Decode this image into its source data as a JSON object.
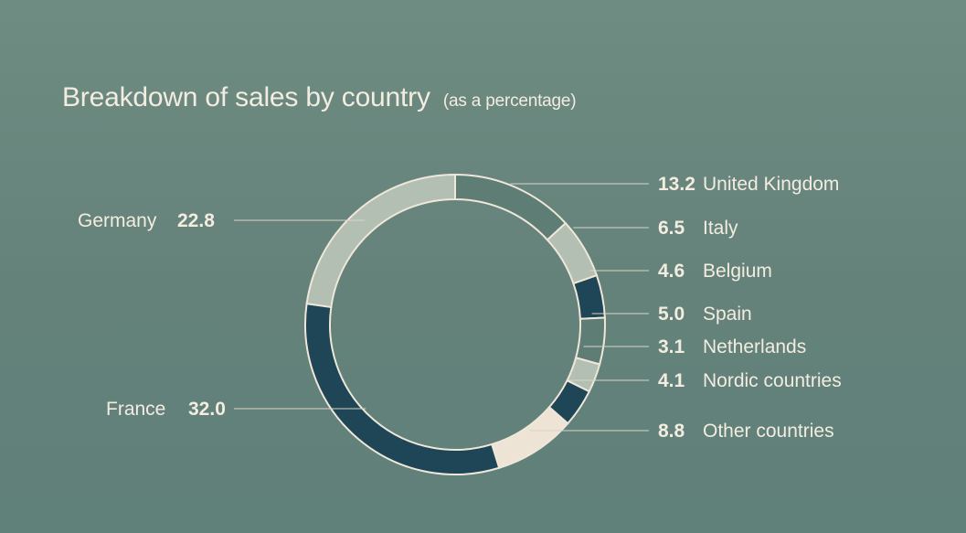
{
  "chart_data": {
    "type": "pie",
    "style": "donut",
    "title": "Breakdown of sales by country",
    "subtitle": "(as a percentage)",
    "categories": [
      "United Kingdom",
      "Italy",
      "Belgium",
      "Spain",
      "Netherlands",
      "Nordic countries",
      "Other countries",
      "France",
      "Germany"
    ],
    "values": [
      13.2,
      6.5,
      4.6,
      5.0,
      3.1,
      4.1,
      8.8,
      32.0,
      22.8
    ],
    "value_labels": [
      "13.2",
      "6.5",
      "4.6",
      "5.0",
      "3.1",
      "4.1",
      "8.8",
      "32.0",
      "22.8"
    ],
    "colors": [
      "#5e7e75",
      "#b3bfb2",
      "#1f4656",
      "#5e7e75",
      "#b3bfb2",
      "#1f4656",
      "#ede4d6",
      "#1f4656",
      "#b3bfb2"
    ],
    "start_angle_deg": 0,
    "direction": "clockwise",
    "legend": "leader-line labels (right side for first seven, left side for France and Germany)",
    "grid": false
  },
  "colors": {
    "background": "#67857c",
    "text": "#f3ece0",
    "leader_line": "#d9d4c6",
    "segment_border": "#efe7d9"
  }
}
